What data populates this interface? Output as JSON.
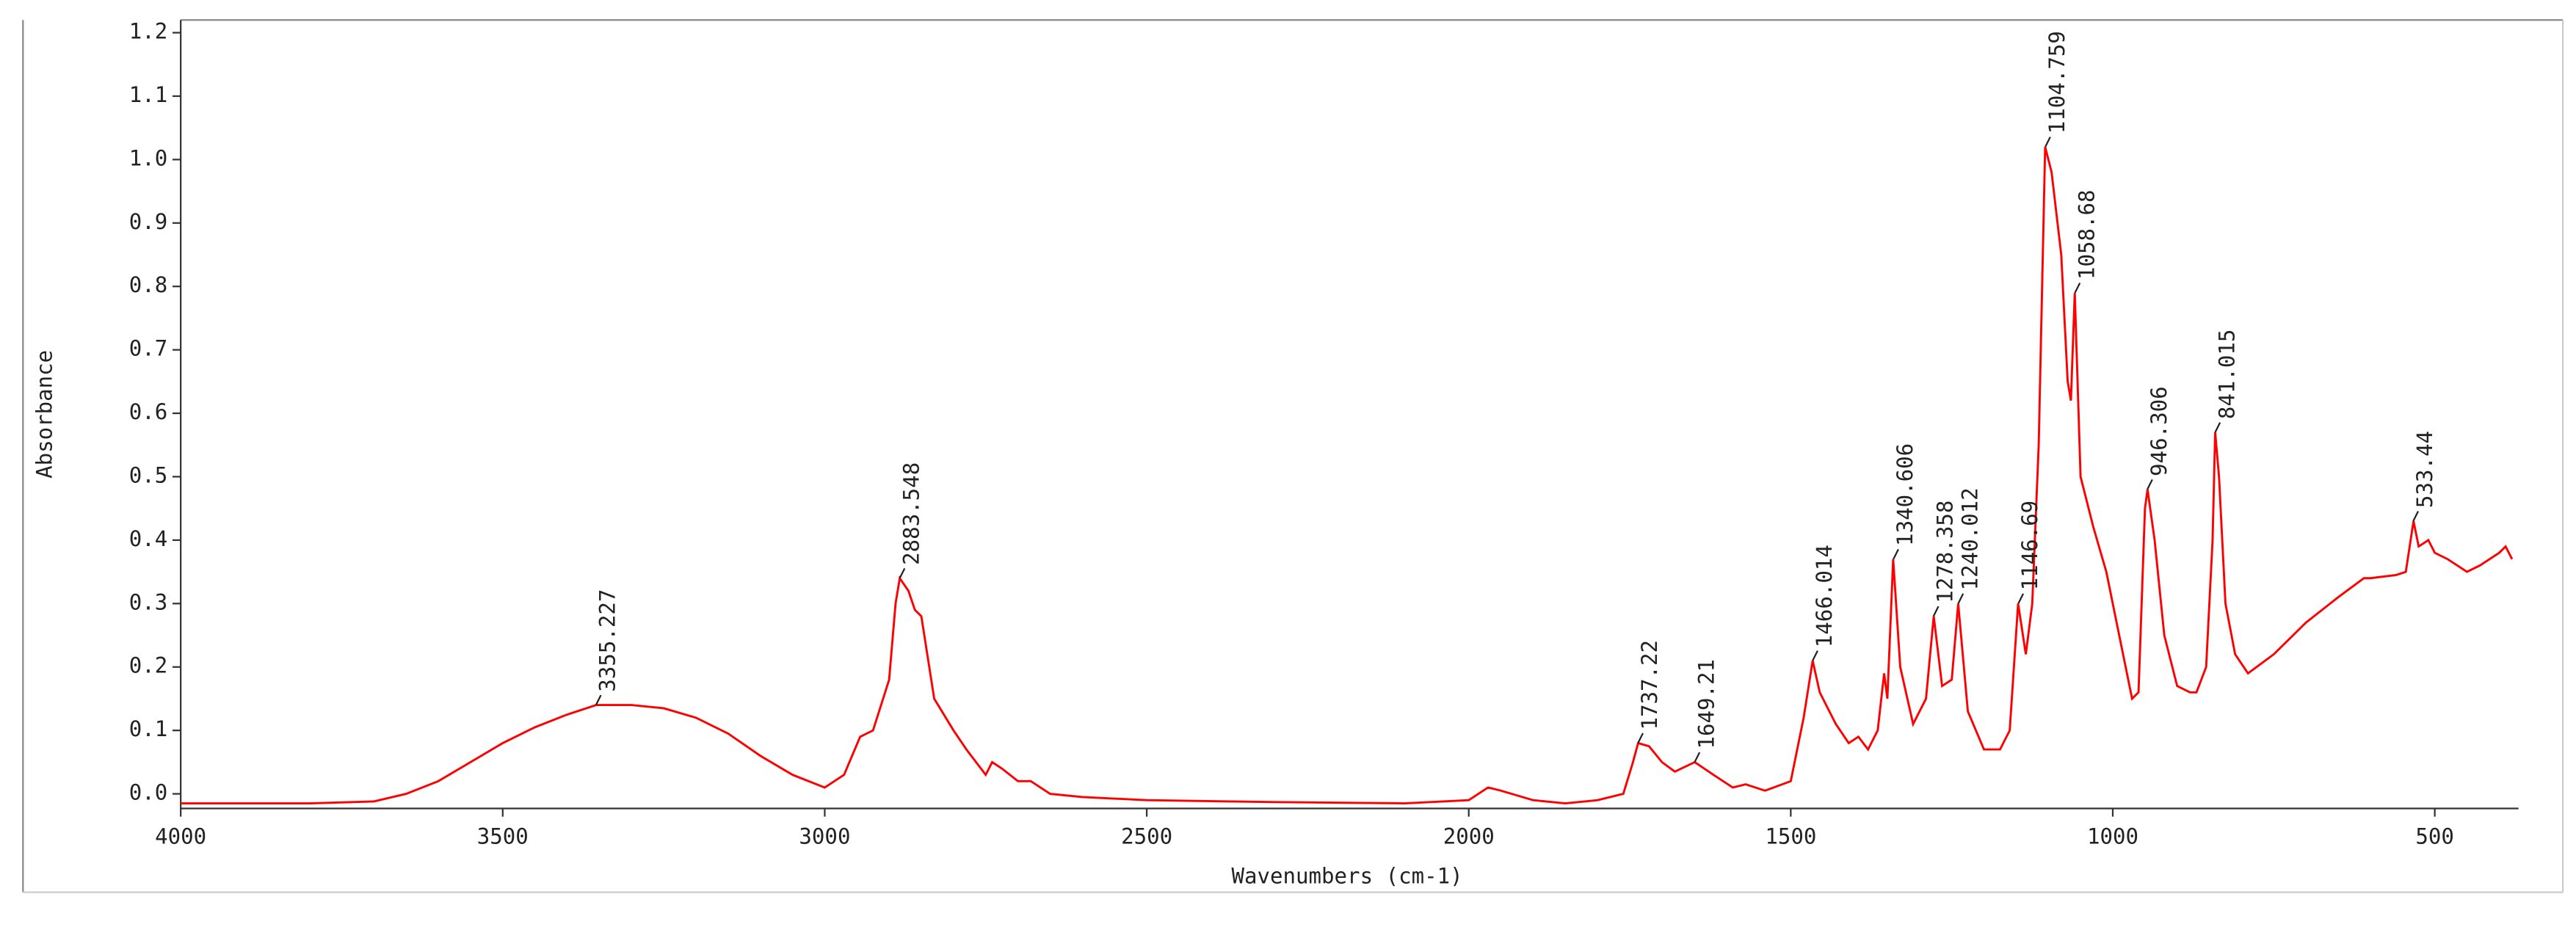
{
  "chart_data": {
    "type": "line",
    "x_label": "Wavenumbers (cm-1)",
    "y_label": "Absorbance",
    "xlim": [
      4000,
      370
    ],
    "ylim": [
      -0.023,
      1.22
    ],
    "xticks": [
      4000,
      3500,
      3000,
      2500,
      2000,
      1500,
      1000,
      500
    ],
    "yticks": [
      {
        "value": 0,
        "label": "0.0"
      },
      {
        "value": 0.1,
        "label": "0.1"
      },
      {
        "value": 0.2,
        "label": "0.2"
      },
      {
        "value": 0.3,
        "label": "0.3"
      },
      {
        "value": 0.4,
        "label": "0.4"
      },
      {
        "value": 0.5,
        "label": "0.5"
      },
      {
        "value": 0.6,
        "label": "0.6"
      },
      {
        "value": 0.7,
        "label": "0.7"
      },
      {
        "value": 0.8,
        "label": "0.8"
      },
      {
        "value": 0.9,
        "label": "0.9"
      },
      {
        "value": 1.0,
        "label": "1.0"
      },
      {
        "value": 1.1,
        "label": "1.1"
      },
      {
        "value": 1.2,
        "label": "1.2"
      }
    ],
    "grid": false,
    "x": [
      4000,
      3800,
      3700,
      3650,
      3600,
      3550,
      3500,
      3450,
      3400,
      3355,
      3300,
      3250,
      3200,
      3150,
      3100,
      3050,
      3000,
      2970,
      2945,
      2925,
      2900,
      2890,
      2883.5,
      2870,
      2860,
      2850,
      2830,
      2800,
      2780,
      2750,
      2740,
      2725,
      2700,
      2680,
      2650,
      2600,
      2500,
      2300,
      2100,
      2000,
      1970,
      1950,
      1900,
      1850,
      1800,
      1760,
      1745,
      1737,
      1720,
      1700,
      1680,
      1649,
      1620,
      1590,
      1570,
      1540,
      1500,
      1480,
      1466,
      1455,
      1445,
      1430,
      1410,
      1395,
      1380,
      1365,
      1355,
      1350,
      1341,
      1330,
      1310,
      1290,
      1278,
      1265,
      1250,
      1240,
      1225,
      1200,
      1175,
      1160,
      1147,
      1135,
      1125,
      1115,
      1105,
      1095,
      1080,
      1070,
      1065,
      1059,
      1050,
      1030,
      1010,
      990,
      970,
      960,
      950,
      946,
      935,
      920,
      900,
      880,
      870,
      855,
      845,
      841,
      835,
      825,
      810,
      790,
      750,
      700,
      650,
      610,
      600,
      560,
      545,
      533,
      525,
      510,
      500,
      480,
      450,
      430,
      400,
      390,
      380
    ],
    "series": [
      {
        "name": "Absorbance",
        "color": "#ff0000",
        "values": [
          -0.015,
          -0.015,
          -0.012,
          0.0,
          0.02,
          0.05,
          0.08,
          0.105,
          0.125,
          0.14,
          0.14,
          0.135,
          0.12,
          0.095,
          0.06,
          0.03,
          0.01,
          0.03,
          0.09,
          0.1,
          0.18,
          0.3,
          0.34,
          0.32,
          0.29,
          0.28,
          0.15,
          0.1,
          0.07,
          0.03,
          0.05,
          0.04,
          0.02,
          0.02,
          0.0,
          -0.005,
          -0.01,
          -0.013,
          -0.015,
          -0.01,
          0.01,
          0.005,
          -0.01,
          -0.015,
          -0.01,
          0.0,
          0.05,
          0.08,
          0.075,
          0.05,
          0.035,
          0.05,
          0.03,
          0.01,
          0.015,
          0.005,
          0.02,
          0.12,
          0.21,
          0.16,
          0.14,
          0.11,
          0.08,
          0.09,
          0.07,
          0.1,
          0.19,
          0.15,
          0.37,
          0.2,
          0.11,
          0.15,
          0.28,
          0.17,
          0.18,
          0.3,
          0.13,
          0.07,
          0.07,
          0.1,
          0.3,
          0.22,
          0.3,
          0.55,
          1.02,
          0.98,
          0.85,
          0.65,
          0.62,
          0.79,
          0.5,
          0.42,
          0.35,
          0.25,
          0.15,
          0.16,
          0.45,
          0.48,
          0.4,
          0.25,
          0.17,
          0.16,
          0.16,
          0.2,
          0.4,
          0.57,
          0.5,
          0.3,
          0.22,
          0.19,
          0.22,
          0.27,
          0.31,
          0.34,
          0.34,
          0.345,
          0.35,
          0.43,
          0.39,
          0.4,
          0.38,
          0.37,
          0.35,
          0.36,
          0.38,
          0.39,
          0.37
        ]
      }
    ],
    "annotations": [
      {
        "x": 3355.227,
        "y": 0.14
      },
      {
        "x": 2883.548,
        "y": 0.34
      },
      {
        "x": 1737.22,
        "y": 0.08
      },
      {
        "x": 1649.21,
        "y": 0.05
      },
      {
        "x": 1466.014,
        "y": 0.21
      },
      {
        "x": 1340.606,
        "y": 0.37
      },
      {
        "x": 1278.358,
        "y": 0.28
      },
      {
        "x": 1240.012,
        "y": 0.3
      },
      {
        "x": 1146.69,
        "y": 0.3
      },
      {
        "x": 1104.759,
        "y": 1.02
      },
      {
        "x": 1058.68,
        "y": 0.79
      },
      {
        "x": 946.306,
        "y": 0.48
      },
      {
        "x": 841.015,
        "y": 0.57
      },
      {
        "x": 533.44,
        "y": 0.43
      }
    ]
  }
}
